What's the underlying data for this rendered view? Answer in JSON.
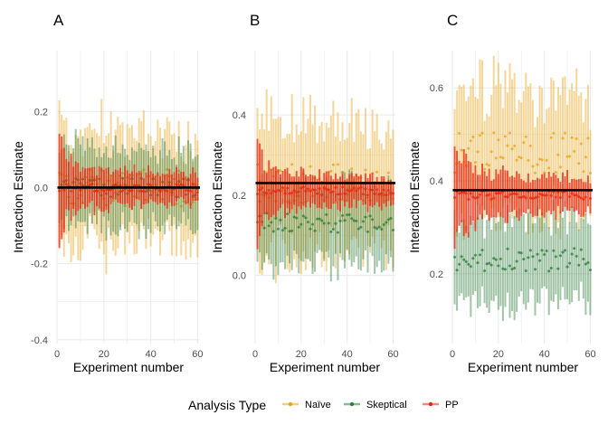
{
  "colors": {
    "naive": "#E8A51C",
    "skeptical": "#2E7D3A",
    "pp": "#E8250E",
    "truth": "#000000",
    "grid": "#EBEBEB",
    "text": "#000000",
    "tick": "#4D4D4D"
  },
  "legend": {
    "title": "Analysis Type",
    "entries": [
      "Naïve",
      "Skeptical",
      "PP"
    ]
  },
  "chart_data": [
    {
      "panel": "A",
      "type": "line",
      "xlabel": "Experiment number",
      "ylabel": "Interaction Estimate",
      "xlim": [
        0,
        61
      ],
      "ylim": [
        -0.41,
        0.36
      ],
      "x_ticks": [
        0,
        20,
        40,
        60
      ],
      "y_ticks": [
        -0.4,
        -0.2,
        0.0,
        0.2
      ],
      "y_tick_labels": [
        "-0.4",
        "-0.2",
        "0.0",
        "0.2"
      ],
      "truth": 0.0,
      "series": [
        {
          "name": "Naïve",
          "mean": 0.0,
          "start_halfwidth": 0.16,
          "end_halfwidth": 0.13,
          "jitter": 0.05
        },
        {
          "name": "Skeptical",
          "mean": 0.0,
          "start_halfwidth": 0.11,
          "end_halfwidth": 0.1,
          "jitter": 0.025
        },
        {
          "name": "PP",
          "mean": 0.0,
          "start_halfwidth": 0.15,
          "end_halfwidth": 0.02,
          "jitter": 0.01
        }
      ]
    },
    {
      "panel": "B",
      "type": "line",
      "xlabel": "Experiment number",
      "ylabel": "Interaction Estimate",
      "xlim": [
        0,
        61
      ],
      "ylim": [
        -0.17,
        0.56
      ],
      "x_ticks": [
        0,
        20,
        40,
        60
      ],
      "y_ticks": [
        0.0,
        0.2,
        0.4
      ],
      "y_tick_labels": [
        "0.0",
        "0.2",
        "0.4"
      ],
      "truth": 0.23,
      "series": [
        {
          "name": "Naïve",
          "mean": 0.23,
          "start_halfwidth": 0.17,
          "end_halfwidth": 0.14,
          "jitter": 0.05
        },
        {
          "name": "Skeptical",
          "mean": 0.13,
          "start_halfwidth": 0.1,
          "end_halfwidth": 0.1,
          "jitter": 0.025
        },
        {
          "name": "PP",
          "mean": 0.21,
          "start_halfwidth": 0.12,
          "end_halfwidth": 0.02,
          "jitter": 0.01
        }
      ]
    },
    {
      "panel": "C",
      "type": "line",
      "xlabel": "Experiment number",
      "ylabel": "Interaction Estimate",
      "xlim": [
        0,
        61
      ],
      "ylim": [
        0.05,
        0.68
      ],
      "x_ticks": [
        0,
        20,
        40,
        60
      ],
      "y_ticks": [
        0.2,
        0.4,
        0.6
      ],
      "y_tick_labels": [
        "0.2",
        "0.4",
        "0.6"
      ],
      "truth": 0.38,
      "series": [
        {
          "name": "Naïve",
          "mean": 0.46,
          "start_halfwidth": 0.14,
          "end_halfwidth": 0.12,
          "jitter": 0.045
        },
        {
          "name": "Skeptical",
          "mean": 0.23,
          "start_halfwidth": 0.09,
          "end_halfwidth": 0.09,
          "jitter": 0.025
        },
        {
          "name": "PP",
          "mean": 0.37,
          "start_halfwidth": 0.14,
          "end_halfwidth": 0.02,
          "jitter": 0.01
        }
      ]
    }
  ]
}
